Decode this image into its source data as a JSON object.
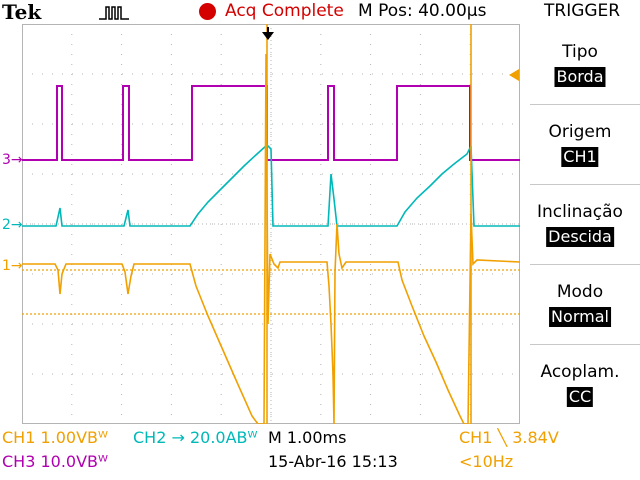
{
  "header": {
    "brand": "Tek",
    "status": "Acq Complete",
    "mpos": "M Pos: 40.00µs",
    "trigger_title": "TRIGGER"
  },
  "menu": [
    {
      "label": "Tipo",
      "value": "Borda"
    },
    {
      "label": "Origem",
      "value": "CH1"
    },
    {
      "label": "Inclinação",
      "value": "Descida"
    },
    {
      "label": "Modo",
      "value": "Normal"
    },
    {
      "label": "Acoplam.",
      "value": "CC"
    }
  ],
  "channels": {
    "ch1": {
      "marker": "1",
      "color": "#f0a000",
      "scale": "CH1  1.00VBᵂ"
    },
    "ch2": {
      "marker": "2",
      "color": "#00b8b8",
      "scale": "CH2 → 20.0ABᵂ"
    },
    "ch3": {
      "marker": "3",
      "color": "#b000b0",
      "scale": "CH3  10.0VBᵂ"
    }
  },
  "footer": {
    "timebase": "M 1.00ms",
    "date": "15-Abr-16 15:13",
    "trigger_level": "CH1 ╲ 3.84V",
    "freq": "<10Hz"
  },
  "colors": {
    "ch1": "#f0a000",
    "ch2": "#00b8b8",
    "ch3": "#b000b0",
    "grid": "#b4b4b4",
    "status": "#d40000"
  }
}
